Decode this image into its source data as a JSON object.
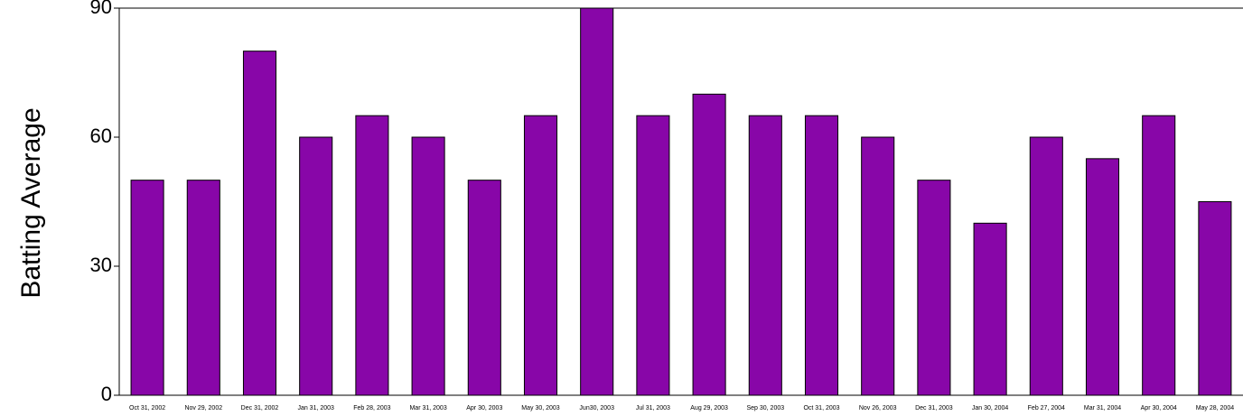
{
  "chart_data": {
    "type": "bar",
    "y_label": "Batting Average",
    "categories": [
      "Oct 31, 2002",
      "Nov 29, 2002",
      "Dec 31, 2002",
      "Jan 31, 2003",
      "Feb 28, 2003",
      "Mar 31, 2003",
      "Apr 30, 2003",
      "May 30, 2003",
      "Jun30, 2003",
      "Jul 31, 2003",
      "Aug 29, 2003",
      "Sep 30, 2003",
      "Oct 31, 2003",
      "Nov 26, 2003",
      "Dec 31, 2003",
      "Jan 30, 2004",
      "Feb 27, 2004",
      "Mar 31, 2004",
      "Apr 30, 2004",
      "May 28, 2004"
    ],
    "values": [
      50,
      50,
      80,
      60,
      65,
      60,
      50,
      65,
      90,
      65,
      70,
      65,
      65,
      60,
      50,
      40,
      60,
      55,
      65,
      45
    ],
    "color": "#8806a8",
    "ylim": [
      0,
      90
    ],
    "yticks": [
      0,
      30,
      60,
      90
    ],
    "grid": false
  }
}
